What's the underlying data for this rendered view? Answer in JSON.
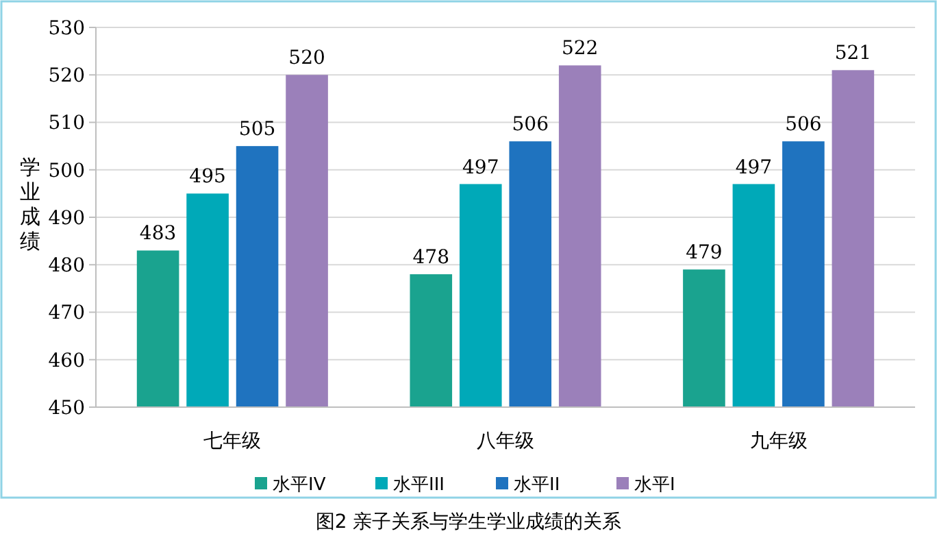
{
  "chart_data": {
    "type": "bar",
    "title": "图2 亲子关系与学生学业成绩的关系",
    "ylabel": "学业成绩",
    "categories": [
      "七年级",
      "八年级",
      "九年级"
    ],
    "series": [
      {
        "name": "水平IV",
        "color": "#1aa38f",
        "values": [
          483,
          478,
          479
        ]
      },
      {
        "name": "水平III",
        "color": "#00a9b8",
        "values": [
          495,
          497,
          497
        ]
      },
      {
        "name": "水平II",
        "color": "#1f73bf",
        "values": [
          505,
          506,
          506
        ]
      },
      {
        "name": "水平I",
        "color": "#9b80ba",
        "values": [
          520,
          522,
          521
        ]
      }
    ],
    "ylim": [
      450,
      530
    ],
    "yticks": [
      450,
      460,
      470,
      480,
      490,
      500,
      510,
      520,
      530
    ],
    "grid": "y",
    "legend": "bottom",
    "data_labels": true
  }
}
